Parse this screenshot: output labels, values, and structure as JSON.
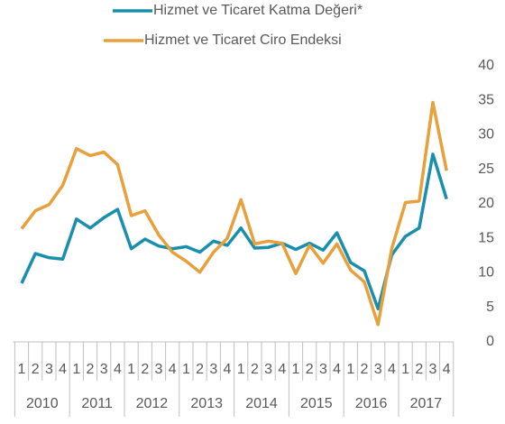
{
  "chart_data": {
    "type": "line",
    "categories": [
      "1",
      "2",
      "3",
      "4",
      "1",
      "2",
      "3",
      "4",
      "1",
      "2",
      "3",
      "4",
      "1",
      "2",
      "3",
      "4",
      "1",
      "2",
      "3",
      "4",
      "1",
      "2",
      "3",
      "4",
      "1",
      "2",
      "3",
      "4",
      "1",
      "2",
      "3",
      "4"
    ],
    "years": [
      "2010",
      "2011",
      "2012",
      "2013",
      "2014",
      "2015",
      "2016",
      "2017"
    ],
    "series": [
      {
        "name": "Hizmet ve Ticaret Katma Değeri*",
        "color": "#1a8fad",
        "values": [
          8.5,
          12.8,
          12.2,
          12.0,
          17.8,
          16.5,
          18.0,
          19.2,
          13.5,
          14.9,
          13.9,
          13.5,
          13.8,
          13.0,
          14.6,
          14.0,
          16.5,
          13.6,
          13.7,
          14.3,
          13.4,
          14.3,
          13.3,
          15.8,
          11.5,
          10.3,
          4.8,
          12.6,
          15.3,
          16.5,
          27.2,
          20.7
        ]
      },
      {
        "name": "Hizmet ve Ticaret Ciro Endeksi",
        "color": "#e8a03c",
        "values": [
          16.4,
          19.0,
          19.9,
          22.7,
          28.0,
          27.0,
          27.5,
          25.7,
          18.3,
          19.0,
          15.5,
          13.0,
          11.7,
          10.1,
          13.0,
          15.0,
          20.6,
          14.2,
          14.6,
          14.3,
          9.9,
          14.0,
          11.4,
          14.2,
          10.4,
          8.7,
          2.5,
          13.5,
          20.2,
          20.4,
          34.7,
          24.8
        ]
      }
    ],
    "ylim": [
      0,
      40
    ],
    "yticks": [
      0,
      5,
      10,
      15,
      20,
      25,
      30,
      35,
      40
    ],
    "grid": false,
    "yaxis_side": "right"
  }
}
